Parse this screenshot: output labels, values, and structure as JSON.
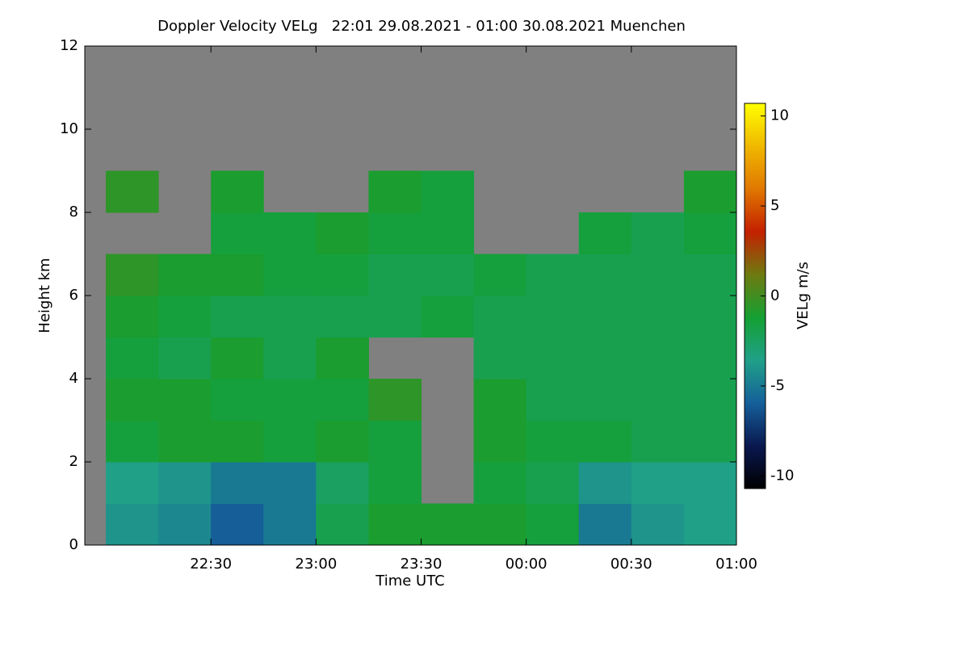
{
  "chart_data": {
    "type": "heatmap",
    "title": "Doppler Velocity VELg   22:01 29.08.2021 - 01:00 30.08.2021 Muenchen",
    "x_label": "Time UTC",
    "y_label": "Height km",
    "colorbar_label": "VELg m/s",
    "xlim": [
      21.9,
      25.0
    ],
    "ylim": [
      0,
      12
    ],
    "xticks": [
      {
        "value": 22.5,
        "label": "22:30"
      },
      {
        "value": 23.0,
        "label": "23:00"
      },
      {
        "value": 23.5,
        "label": "23:30"
      },
      {
        "value": 24.0,
        "label": "00:00"
      },
      {
        "value": 24.5,
        "label": "00:30"
      },
      {
        "value": 25.0,
        "label": "01:00"
      }
    ],
    "yticks": [
      0,
      2,
      4,
      6,
      8,
      10,
      12
    ],
    "x_edges": [
      22.0,
      22.25,
      22.5,
      22.75,
      23.0,
      23.25,
      23.5,
      23.75,
      24.0,
      24.25,
      24.5,
      24.75,
      25.0
    ],
    "y_edges": [
      0,
      1,
      2,
      3,
      4,
      5,
      6,
      7,
      8,
      9,
      10,
      11,
      12
    ],
    "z": [
      [
        -4,
        -4.5,
        -6,
        -5,
        -2,
        -1,
        -1,
        -1,
        -1.5,
        -5,
        -4,
        -3.5
      ],
      [
        -3.5,
        -4,
        -5,
        -5,
        -2.5,
        -1.5,
        null,
        -1.5,
        -2,
        -4,
        -3.5,
        -3.5
      ],
      [
        -1.5,
        -1,
        -1,
        -1.5,
        -1,
        -1.5,
        null,
        -1,
        -1.5,
        -1.5,
        -2,
        -2
      ],
      [
        -1,
        -1,
        -1.5,
        -1.5,
        -1.5,
        -0.5,
        null,
        -1,
        -2,
        -2,
        -2,
        -2
      ],
      [
        -1.5,
        -2,
        -1,
        -2,
        -1,
        null,
        null,
        -2,
        -2,
        -2,
        -2,
        -2
      ],
      [
        -1,
        -1.5,
        -2,
        -2,
        -2,
        -2,
        -1.5,
        -2,
        -2,
        -2,
        -2,
        -2
      ],
      [
        -0.5,
        -1,
        -1,
        -1.5,
        -1.5,
        -2,
        -2,
        -1.5,
        -2,
        -2,
        -2,
        -2
      ],
      [
        null,
        null,
        -1.5,
        -1.5,
        -1,
        -1.5,
        -1.5,
        null,
        null,
        -1.5,
        -2,
        -1.5
      ],
      [
        -0.5,
        null,
        -1,
        null,
        null,
        -1,
        -1.5,
        null,
        null,
        null,
        null,
        -1
      ],
      [
        null,
        null,
        null,
        null,
        null,
        null,
        null,
        null,
        null,
        null,
        null,
        null
      ],
      [
        null,
        null,
        null,
        null,
        null,
        null,
        null,
        null,
        null,
        null,
        null,
        null
      ],
      [
        null,
        null,
        null,
        null,
        null,
        null,
        null,
        null,
        null,
        null,
        null,
        null
      ]
    ],
    "missing_color": "#808080",
    "colormap": [
      "#000000",
      "#0a1850",
      "#15609a",
      "#20a088",
      "#14a032",
      "#6e7a10",
      "#c42000",
      "#e07800",
      "#f0b800",
      "#ffff00"
    ],
    "clim": [
      -10.7,
      10.7
    ],
    "cticks": [
      -10,
      -5,
      0,
      5,
      10
    ]
  }
}
